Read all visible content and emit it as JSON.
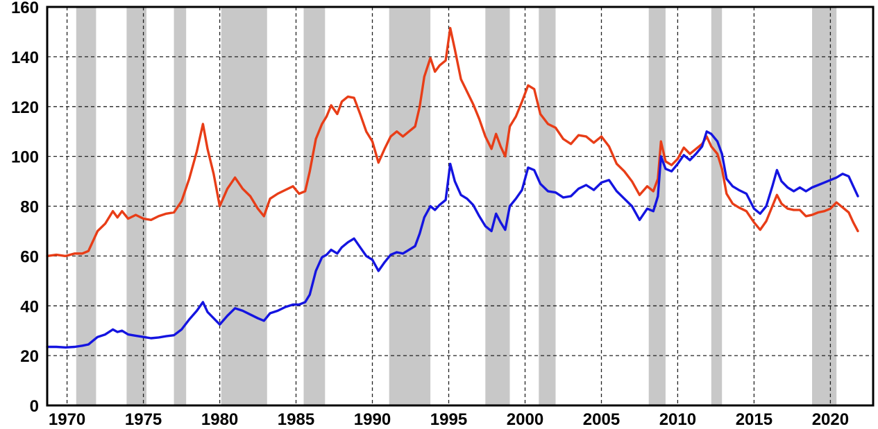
{
  "figure": {
    "description": "Dual-line time series chart, 1970-2022, with gray recession shading",
    "background": "#ffffff"
  },
  "chart_data": {
    "type": "line",
    "title": "",
    "xlabel": "",
    "ylabel": "",
    "legend_position": "none",
    "grid": "dashed",
    "xlim": [
      1968.7,
      2022.8
    ],
    "ylim": [
      0,
      160
    ],
    "x_ticks": [
      1970,
      1975,
      1980,
      1985,
      1990,
      1995,
      2000,
      2005,
      2010,
      2015,
      2020
    ],
    "y_ticks": [
      0,
      20,
      40,
      60,
      80,
      100,
      120,
      140,
      160
    ],
    "band_color": "#c8c8c8",
    "grid_color": "#222222",
    "border_color": "#000000",
    "recession_bands": [
      [
        1970.6,
        1971.9
      ],
      [
        1973.9,
        1975.2
      ],
      [
        1977.0,
        1977.8
      ],
      [
        1980.1,
        1983.1
      ],
      [
        1985.5,
        1986.9
      ],
      [
        1991.1,
        1993.8
      ],
      [
        1997.4,
        1999.0
      ],
      [
        2000.9,
        2002.0
      ],
      [
        2008.1,
        2009.2
      ],
      [
        2012.2,
        2012.9
      ],
      [
        2018.8,
        2020.4
      ]
    ],
    "x": [
      1968.7,
      1969.3,
      1969.9,
      1970.5,
      1971.0,
      1971.4,
      1971.7,
      1972.0,
      1972.5,
      1973.0,
      1973.3,
      1973.6,
      1974.0,
      1974.5,
      1975.0,
      1975.5,
      1976.0,
      1976.5,
      1977.0,
      1977.5,
      1978.0,
      1978.5,
      1978.9,
      1979.2,
      1979.6,
      1980.0,
      1980.5,
      1981.0,
      1981.5,
      1982.0,
      1982.5,
      1982.9,
      1983.3,
      1983.8,
      1984.3,
      1984.8,
      1985.2,
      1985.6,
      1985.9,
      1986.3,
      1986.7,
      1987.0,
      1987.3,
      1987.7,
      1988.0,
      1988.4,
      1988.8,
      1989.2,
      1989.6,
      1990.0,
      1990.4,
      1990.8,
      1991.2,
      1991.6,
      1992.0,
      1992.4,
      1992.8,
      1993.1,
      1993.4,
      1993.8,
      1994.1,
      1994.4,
      1994.8,
      1995.1,
      1995.4,
      1995.8,
      1996.2,
      1996.6,
      1997.0,
      1997.4,
      1997.8,
      1998.1,
      1998.4,
      1998.7,
      1999.0,
      1999.4,
      1999.8,
      2000.2,
      2000.6,
      2001.0,
      2001.5,
      2002.0,
      2002.5,
      2003.0,
      2003.5,
      2004.0,
      2004.5,
      2005.0,
      2005.5,
      2006.0,
      2006.5,
      2007.0,
      2007.5,
      2008.0,
      2008.4,
      2008.7,
      2008.9,
      2009.2,
      2009.6,
      2010.0,
      2010.4,
      2010.8,
      2011.2,
      2011.6,
      2011.9,
      2012.2,
      2012.6,
      2012.9,
      2013.2,
      2013.6,
      2014.0,
      2014.5,
      2015.0,
      2015.4,
      2015.8,
      2016.2,
      2016.5,
      2016.8,
      2017.2,
      2017.6,
      2018.0,
      2018.4,
      2018.8,
      2019.2,
      2019.6,
      2020.0,
      2020.4,
      2020.8,
      2021.2,
      2021.5,
      2021.8
    ],
    "series": [
      {
        "name": "red-series",
        "color": "#e83d17",
        "stroke_width": 3.4,
        "values": [
          60,
          60.5,
          60,
          61,
          61,
          62,
          66,
          70,
          73,
          78,
          75.5,
          78,
          75,
          76.5,
          75,
          74.5,
          76,
          77,
          77.5,
          82,
          91,
          102,
          113,
          103,
          93,
          80,
          87,
          91.5,
          87,
          84,
          79,
          76,
          83,
          85,
          86.5,
          88,
          85,
          86,
          94,
          107,
          113,
          116,
          120.5,
          117,
          122,
          124,
          123.5,
          117,
          110,
          106,
          97.5,
          103,
          108,
          110,
          108,
          110,
          112,
          120,
          132,
          139.5,
          134,
          136.5,
          138.5,
          151.5,
          143,
          131,
          126,
          121,
          115,
          108,
          103,
          109,
          104,
          100,
          112,
          116,
          122,
          128.5,
          127,
          117,
          113,
          111.5,
          107,
          105,
          108.5,
          108,
          105.5,
          108,
          104,
          97,
          94,
          90,
          84.5,
          88,
          86,
          91,
          106,
          98,
          96.5,
          99,
          103.5,
          101,
          103,
          105,
          108,
          104,
          101,
          95,
          85,
          81,
          79.5,
          78,
          73.5,
          70.5,
          74,
          80,
          84.5,
          81,
          79,
          78.5,
          78.5,
          76,
          76.5,
          77.5,
          78,
          79,
          81.5,
          79.5,
          77.5,
          73.5,
          70
        ]
      },
      {
        "name": "blue-series",
        "color": "#1414e0",
        "stroke_width": 3.4,
        "values": [
          23.5,
          23.5,
          23.3,
          23.5,
          24,
          24.5,
          26,
          27.5,
          28.5,
          30.5,
          29.5,
          30,
          28.5,
          28,
          27.5,
          27,
          27.3,
          27.8,
          28.2,
          30.5,
          34.5,
          38,
          41.5,
          37.5,
          35,
          32.5,
          36,
          39,
          38,
          36.5,
          35,
          34,
          37,
          38,
          39.5,
          40.5,
          40.5,
          41.5,
          44.5,
          54,
          59.5,
          60.5,
          62.5,
          61,
          63.5,
          65.5,
          67,
          63.5,
          60,
          58.5,
          54,
          57.5,
          60.5,
          61.5,
          61,
          62.5,
          64,
          69,
          75.5,
          80,
          78.5,
          80.5,
          82.5,
          97,
          90,
          84.5,
          83,
          80.5,
          76,
          72,
          70,
          77,
          73.5,
          70.5,
          80,
          83,
          86.5,
          95.5,
          94.5,
          89,
          86,
          85.5,
          83.5,
          84,
          87,
          88.5,
          86.5,
          89.5,
          90.5,
          86,
          83,
          80,
          74.5,
          79,
          78,
          84,
          100,
          95,
          94,
          97,
          100.5,
          98.5,
          101,
          104,
          110,
          109,
          106,
          101,
          91,
          88,
          86.5,
          85,
          79,
          77,
          80,
          88,
          94.5,
          90,
          87.5,
          86,
          87.5,
          86,
          87.5,
          88.5,
          89.5,
          90.5,
          91.5,
          93,
          92,
          88,
          84
        ]
      }
    ]
  }
}
